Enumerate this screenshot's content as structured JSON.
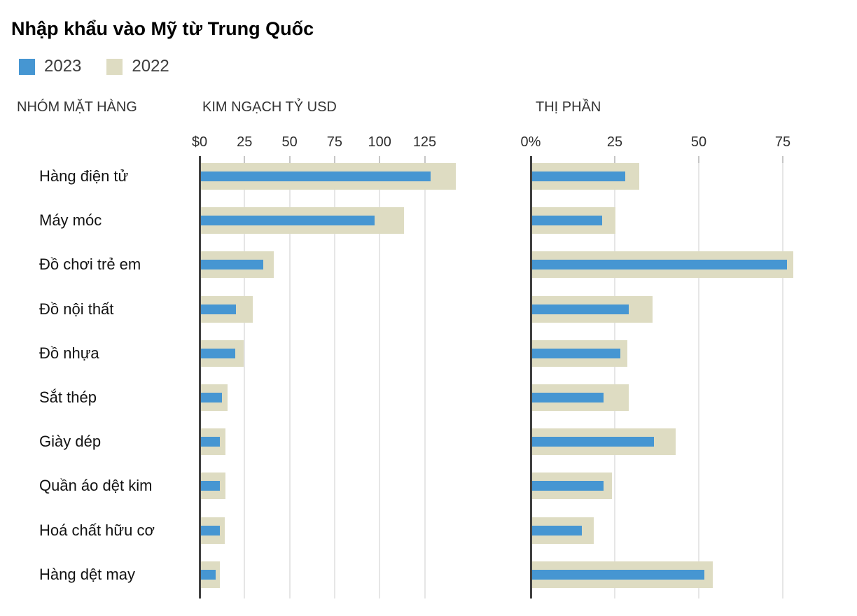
{
  "title": "Nhập khẩu vào Mỹ từ Trung Quốc",
  "legend": [
    {
      "label": "2023",
      "color": "#4696d2"
    },
    {
      "label": "2022",
      "color": "#dedcc2"
    }
  ],
  "columns": {
    "category": "NHÓM MẶT HÀNG",
    "left": "KIM NGẠCH TỶ USD",
    "right": "THỊ PHẦN"
  },
  "colors": {
    "bar_2023": "#4696d2",
    "bar_2022": "#dedcc2",
    "axis_line": "#404040",
    "gridline": "#e6e6e6",
    "tick": "#c6c6c6",
    "text_dark": "#121212",
    "text_gray": "#333333"
  },
  "chart_data": [
    {
      "type": "bar",
      "orientation": "horizontal",
      "title": "KIM NGẠCH TỶ USD",
      "unit": "tỷ USD",
      "legend_position": "top",
      "grid": true,
      "categories": [
        "Hàng điện tử",
        "Máy móc",
        "Đồ chơi trẻ em",
        "Đồ nội thất",
        "Đồ nhựa",
        "Sắt thép",
        "Giày dép",
        "Quần áo dệt kim",
        "Hoá chất hữu cơ",
        "Hàng dệt may"
      ],
      "series": [
        {
          "name": "2023",
          "color": "#4696d2",
          "values": [
            128,
            97,
            35,
            20,
            19.5,
            12,
            11,
            11,
            11,
            8.5
          ]
        },
        {
          "name": "2022",
          "color": "#dedcc2",
          "values": [
            142,
            113,
            41,
            29,
            24,
            15,
            14,
            14,
            13.5,
            11
          ]
        }
      ],
      "axis": {
        "tick_labels": [
          "$0",
          "25",
          "50",
          "75",
          "100",
          "125"
        ],
        "tick_values": [
          0,
          25,
          50,
          75,
          100,
          125
        ],
        "xlim": [
          0,
          157
        ]
      }
    },
    {
      "type": "bar",
      "orientation": "horizontal",
      "title": "THỊ PHẦN",
      "unit": "%",
      "legend_position": "top",
      "grid": true,
      "categories": [
        "Hàng điện tử",
        "Máy móc",
        "Đồ chơi trẻ em",
        "Đồ nội thất",
        "Đồ nhựa",
        "Sắt thép",
        "Giày dép",
        "Quần áo dệt kim",
        "Hoá chất hữu cơ",
        "Hàng dệt may"
      ],
      "series": [
        {
          "name": "2023",
          "color": "#4696d2",
          "values": [
            28,
            21,
            76,
            29,
            26.5,
            21.5,
            36.5,
            21.5,
            15,
            51.5
          ]
        },
        {
          "name": "2022",
          "color": "#dedcc2",
          "values": [
            32,
            25,
            78,
            36,
            28.5,
            29,
            43,
            24,
            18.5,
            54
          ]
        }
      ],
      "axis": {
        "tick_labels": [
          "0%",
          "25",
          "50",
          "75"
        ],
        "tick_values": [
          0,
          25,
          50,
          75
        ],
        "xlim": [
          0,
          97
        ]
      }
    }
  ]
}
